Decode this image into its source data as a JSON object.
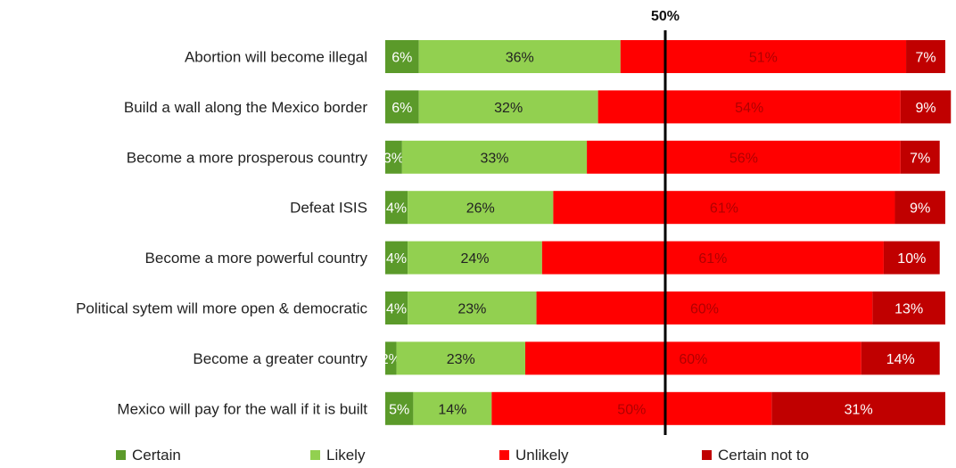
{
  "chart_data": {
    "type": "bar",
    "orientation": "horizontal",
    "stacked": true,
    "xlim": [
      0,
      100
    ],
    "reference_line": {
      "value": 50,
      "label": "50%"
    },
    "legend_position": "bottom",
    "grid": false,
    "categories": [
      "Abortion will become illegal",
      "Build a wall along the Mexico border",
      "Become a more prosperous country",
      "Defeat ISIS",
      "Become a more powerful country",
      "Political sytem will more open & democratic",
      "Become a greater country",
      "Mexico will pay for the wall if it is built"
    ],
    "series": [
      {
        "name": "Certain",
        "color": "#5b9a2a",
        "label_color": "#ffffff",
        "values": [
          6,
          6,
          3,
          4,
          4,
          4,
          2,
          5
        ],
        "labels": [
          "6%",
          "6%",
          "3%",
          "4%",
          "4%",
          "4%",
          "2%",
          "5%"
        ]
      },
      {
        "name": "Likely",
        "color": "#92d050",
        "label_color": "#222222",
        "values": [
          36,
          32,
          33,
          26,
          24,
          23,
          23,
          14
        ],
        "labels": [
          "36%",
          "32%",
          "33%",
          "26%",
          "24%",
          "23%",
          "23%",
          "14%"
        ]
      },
      {
        "name": "Unlikely",
        "color": "#ff0000",
        "label_color": "#b00000",
        "values": [
          51,
          54,
          56,
          61,
          61,
          60,
          60,
          50
        ],
        "labels": [
          "51%",
          "54%",
          "56%",
          "61%",
          "61%",
          "60%",
          "60%",
          "50%"
        ]
      },
      {
        "name": "Certain not to",
        "color": "#c00000",
        "label_color": "#ffffff",
        "values": [
          7,
          9,
          7,
          9,
          10,
          13,
          14,
          31
        ],
        "labels": [
          "7%",
          "9%",
          "7%",
          "9%",
          "10%",
          "13%",
          "14%",
          "31%"
        ]
      }
    ]
  }
}
